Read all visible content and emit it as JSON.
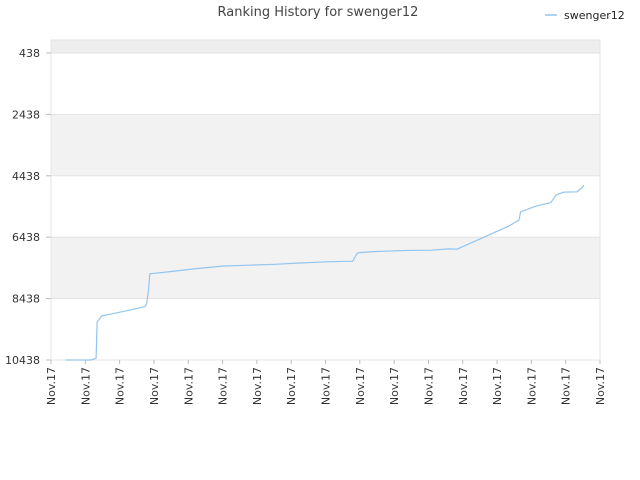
{
  "chart_data": {
    "type": "line",
    "title": "Ranking History for swenger12",
    "xlabel": "",
    "ylabel": "",
    "y_axis_reversed": true,
    "ylim": [
      438,
      10438
    ],
    "yticks": [
      438,
      2438,
      4438,
      6438,
      8438,
      10438
    ],
    "yticklabels": [
      "438",
      "2438",
      "4438",
      "6438",
      "8438",
      "10438"
    ],
    "xticklabels": [
      "Nov.17",
      "Nov.17",
      "Nov.17",
      "Nov.17",
      "Nov.17",
      "Nov.17",
      "Nov.17",
      "Nov.17",
      "Nov.17",
      "Nov.17",
      "Nov.17",
      "Nov.17",
      "Nov.17",
      "Nov.17",
      "Nov.17",
      "Nov.17",
      "Nov.17"
    ],
    "grid": true,
    "band_colors": [
      "#ffffff",
      "#f2f2f2"
    ],
    "top_band_color": "#eeeeee",
    "legend_position": "top-right",
    "series": [
      {
        "name": "swenger12",
        "color": "#92c5f0",
        "x": [
          0.0,
          0.014,
          0.04,
          0.048,
          0.058,
          0.06,
          0.069,
          0.098,
          0.126,
          0.152,
          0.155,
          0.159,
          0.161,
          0.2,
          0.25,
          0.3,
          0.35,
          0.4,
          0.45,
          0.5,
          0.55,
          0.558,
          0.562,
          0.6,
          0.65,
          0.7,
          0.735,
          0.75,
          0.8,
          0.85,
          0.869,
          0.872,
          0.882,
          0.9,
          0.93,
          0.94,
          0.955,
          0.98,
          0.99,
          0.993
        ],
        "y": [
          10438,
          10438,
          10438,
          10438,
          10380,
          9200,
          9000,
          8900,
          8800,
          8700,
          8600,
          8100,
          7630,
          7560,
          7460,
          7380,
          7350,
          7320,
          7280,
          7240,
          7220,
          6980,
          6940,
          6900,
          6870,
          6860,
          6820,
          6830,
          6450,
          6070,
          5880,
          5610,
          5550,
          5430,
          5310,
          5060,
          4970,
          4960,
          4820,
          4740
        ]
      }
    ]
  }
}
